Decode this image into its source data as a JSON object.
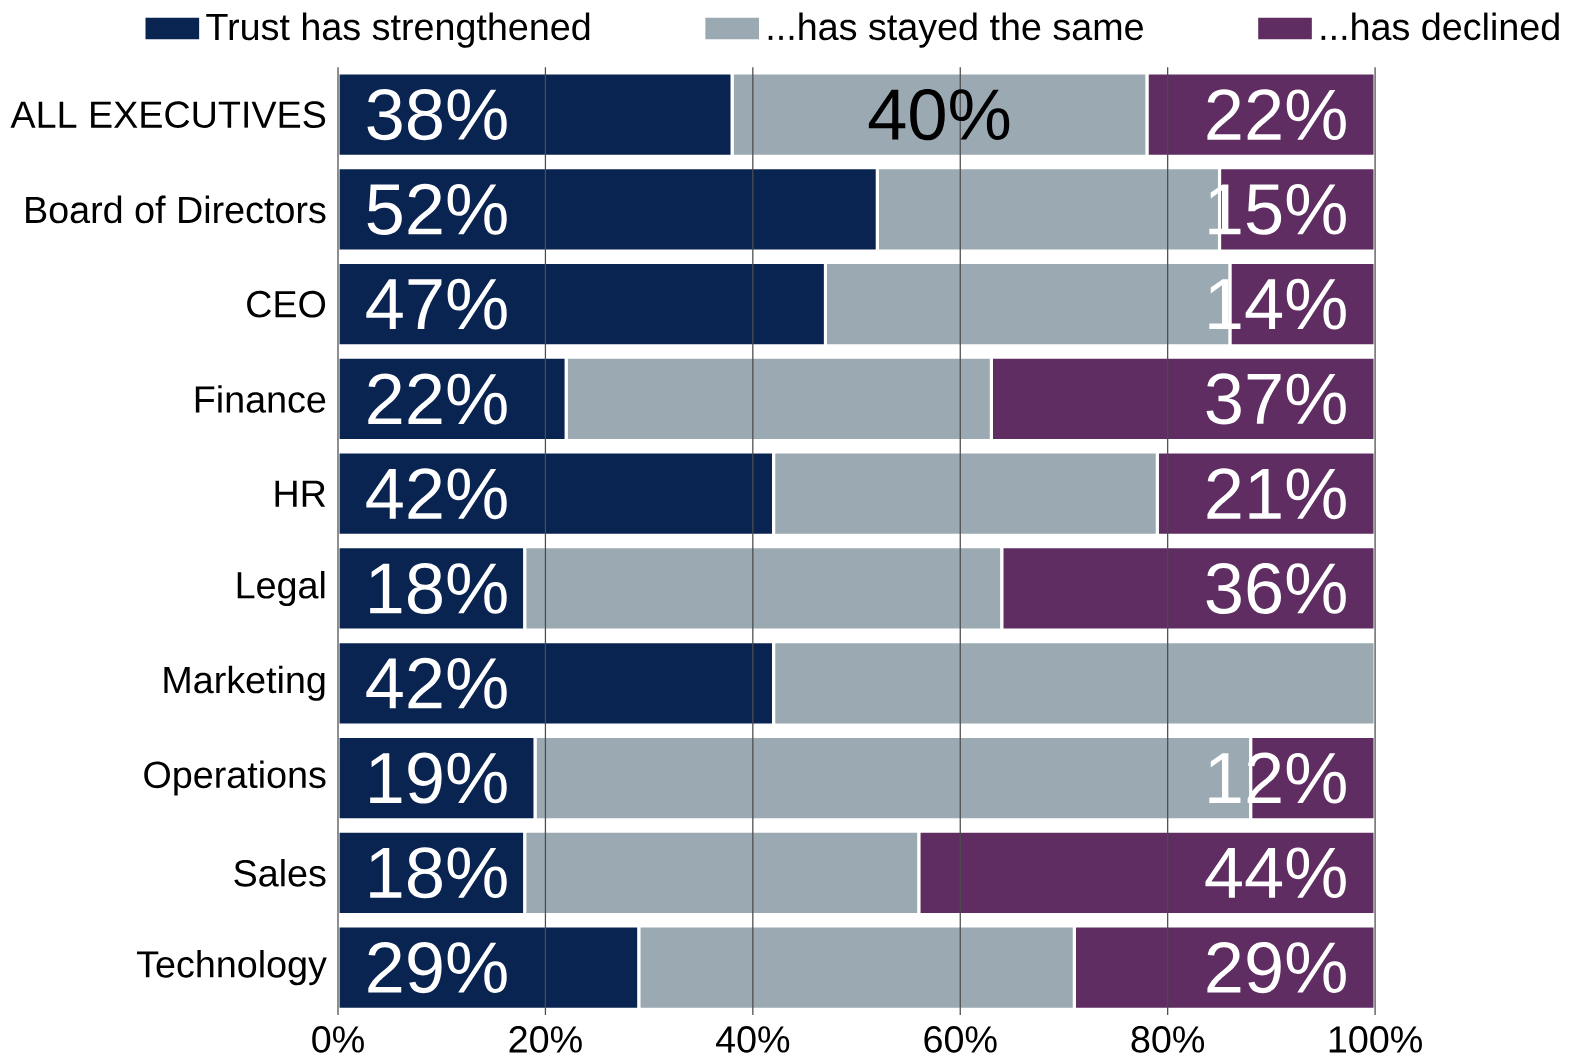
{
  "chart_data": {
    "type": "bar",
    "orientation": "horizontal",
    "stacked": true,
    "categories": [
      "ALL EXECUTIVES",
      "Board of Directors",
      "CEO",
      "Finance",
      "HR",
      "Legal",
      "Marketing",
      "Operations",
      "Sales",
      "Technology"
    ],
    "series": [
      {
        "name": "Trust has strengthened",
        "color": "#0a2452",
        "values": [
          38,
          52,
          47,
          22,
          42,
          18,
          42,
          19,
          18,
          29
        ],
        "value_labels": [
          "38%",
          "52%",
          "47%",
          "22%",
          "42%",
          "18%",
          "42%",
          "19%",
          "18%",
          "29%"
        ]
      },
      {
        "name": "...has stayed the same",
        "color": "#9ba9b2",
        "values": [
          40,
          33,
          39,
          41,
          37,
          46,
          58,
          69,
          38,
          42
        ],
        "value_labels": [
          "40%",
          null,
          null,
          null,
          null,
          null,
          null,
          null,
          null,
          null
        ]
      },
      {
        "name": "...has declined",
        "color": "#5f2d62",
        "values": [
          22,
          15,
          14,
          37,
          21,
          36,
          0,
          12,
          44,
          29
        ],
        "value_labels": [
          "22%",
          "15%",
          "14%",
          "37%",
          "21%",
          "36%",
          null,
          "12%",
          "44%",
          "29%"
        ]
      }
    ],
    "xlim": [
      0,
      100
    ],
    "xticks": [
      {
        "value": 0,
        "label": "0%"
      },
      {
        "value": 20,
        "label": "20%"
      },
      {
        "value": 40,
        "label": "40%"
      },
      {
        "value": 60,
        "label": "60%"
      },
      {
        "value": 80,
        "label": "80%"
      },
      {
        "value": 100,
        "label": "100%"
      }
    ],
    "grid": "x",
    "legend": "top"
  }
}
